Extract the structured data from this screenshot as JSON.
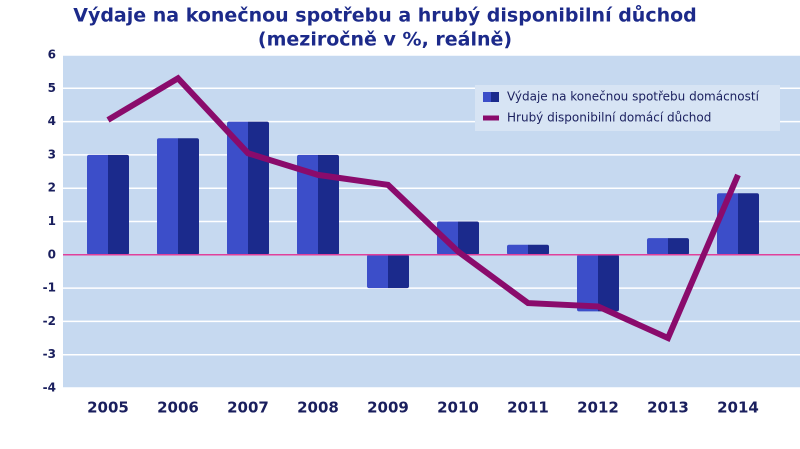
{
  "chart_data": {
    "type": "bar_line",
    "title": "Výdaje na konečnou spotřebu a hrubý disponibilní důchod",
    "subtitle": "(meziročně v %, reálně)",
    "categories": [
      "2005",
      "2006",
      "2007",
      "2008",
      "2009",
      "2010",
      "2011",
      "2012",
      "2013",
      "2014"
    ],
    "series": [
      {
        "name": "Výdaje na konečnou spotřebu domácností",
        "type": "bar",
        "color": "#3c4ec9",
        "values": [
          3.0,
          3.5,
          4.0,
          3.0,
          -1.0,
          1.0,
          0.3,
          -1.7,
          0.5,
          1.85
        ]
      },
      {
        "name": "Hrubý disponibilní domácí důchod",
        "type": "line",
        "color": "#8a0b6c",
        "values": [
          4.05,
          5.3,
          3.05,
          2.4,
          2.1,
          0.1,
          -1.45,
          -1.55,
          -2.5,
          2.4
        ]
      }
    ],
    "ylim": [
      -4,
      6
    ],
    "yticks": [
      -4,
      -3,
      -2,
      -1,
      0,
      1,
      2,
      3,
      4,
      5,
      6
    ],
    "grid": true,
    "legend": "upper right"
  }
}
